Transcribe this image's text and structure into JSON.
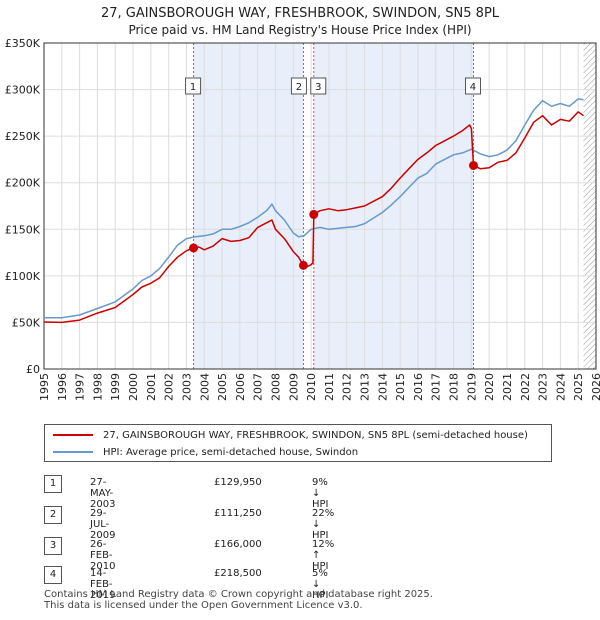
{
  "chart_data": {
    "type": "line",
    "title": "27, GAINSBOROUGH WAY, FRESHBROOK, SWINDON, SN5 8PL",
    "subtitle": "Price paid vs. HM Land Registry's House Price Index (HPI)",
    "xlim": [
      1995,
      2026
    ],
    "ylim": [
      0,
      350000
    ],
    "x_ticks": [
      1995,
      1996,
      1997,
      1998,
      1999,
      2000,
      2001,
      2002,
      2003,
      2004,
      2005,
      2006,
      2007,
      2008,
      2009,
      2010,
      2011,
      2012,
      2013,
      2014,
      2015,
      2016,
      2017,
      2018,
      2019,
      2020,
      2021,
      2022,
      2023,
      2024,
      2025,
      2026
    ],
    "y_ticks": [
      {
        "value": 0,
        "label": "£0"
      },
      {
        "value": 50000,
        "label": "£50K"
      },
      {
        "value": 100000,
        "label": "£100K"
      },
      {
        "value": 150000,
        "label": "£150K"
      },
      {
        "value": 200000,
        "label": "£200K"
      },
      {
        "value": 250000,
        "label": "£250K"
      },
      {
        "value": 300000,
        "label": "£300K"
      },
      {
        "value": 350000,
        "label": "£350K"
      }
    ],
    "shaded_ranges": [
      [
        2003.4,
        2009.57
      ],
      [
        2010.15,
        2019.12
      ]
    ],
    "hatched_from": 2025.3,
    "colors": {
      "property": "#cc0000",
      "hpi": "#6699cc",
      "shade": "#e8eefa",
      "vline": "#dd4444"
    },
    "series": [
      {
        "name": "27, GAINSBOROUGH WAY, FRESHBROOK, SWINDON, SN5 8PL (semi-detached house)",
        "key": "property",
        "x": [
          1995.0,
          1996.0,
          1997.0,
          1998.0,
          1999.0,
          2000.0,
          2000.5,
          2001.0,
          2001.5,
          2002.0,
          2002.5,
          2003.0,
          2003.4,
          2003.7,
          2004.0,
          2004.5,
          2005.0,
          2005.5,
          2006.0,
          2006.5,
          2007.0,
          2007.5,
          2007.8,
          2008.0,
          2008.5,
          2009.0,
          2009.3,
          2009.57,
          2009.6,
          2009.8,
          2010.0,
          2010.1,
          2010.15,
          2010.5,
          2011.0,
          2011.5,
          2012.0,
          2012.5,
          2013.0,
          2013.5,
          2014.0,
          2014.5,
          2015.0,
          2015.5,
          2016.0,
          2016.5,
          2017.0,
          2017.5,
          2018.0,
          2018.5,
          2018.9,
          2019.0,
          2019.12,
          2019.5,
          2020.0,
          2020.5,
          2021.0,
          2021.5,
          2022.0,
          2022.5,
          2023.0,
          2023.5,
          2024.0,
          2024.5,
          2025.0,
          2025.3
        ],
        "y": [
          50500,
          50000,
          52500,
          60000,
          66000,
          80000,
          88000,
          92000,
          98000,
          110000,
          120000,
          127000,
          129950,
          131000,
          128000,
          132000,
          140000,
          137000,
          138000,
          141000,
          152000,
          157000,
          160000,
          150000,
          140000,
          126000,
          120000,
          111250,
          108000,
          110000,
          112000,
          114000,
          166000,
          170000,
          172000,
          170000,
          171000,
          173000,
          175000,
          180000,
          185000,
          194000,
          205000,
          215000,
          225000,
          232000,
          240000,
          245000,
          250000,
          256000,
          262000,
          258000,
          218500,
          215000,
          216000,
          222000,
          224000,
          232000,
          248000,
          265000,
          272000,
          262000,
          268000,
          266000,
          276000,
          272000
        ]
      },
      {
        "name": "HPI: Average price, semi-detached house, Swindon",
        "key": "hpi",
        "x": [
          1995.0,
          1996.0,
          1997.0,
          1998.0,
          1999.0,
          2000.0,
          2000.5,
          2001.0,
          2001.5,
          2002.0,
          2002.5,
          2003.0,
          2003.5,
          2004.0,
          2004.5,
          2005.0,
          2005.5,
          2006.0,
          2006.5,
          2007.0,
          2007.5,
          2007.8,
          2008.0,
          2008.5,
          2009.0,
          2009.3,
          2009.6,
          2010.0,
          2010.5,
          2011.0,
          2011.5,
          2012.0,
          2012.5,
          2013.0,
          2013.5,
          2014.0,
          2014.5,
          2015.0,
          2015.5,
          2016.0,
          2016.5,
          2017.0,
          2017.5,
          2018.0,
          2018.5,
          2019.0,
          2019.5,
          2020.0,
          2020.5,
          2021.0,
          2021.5,
          2022.0,
          2022.5,
          2023.0,
          2023.5,
          2024.0,
          2024.5,
          2025.0,
          2025.3
        ],
        "y": [
          55000,
          55000,
          58000,
          65000,
          72000,
          86000,
          95000,
          100000,
          108000,
          120000,
          133000,
          140000,
          142000,
          143000,
          145000,
          150000,
          150000,
          153000,
          157000,
          163000,
          170000,
          177000,
          170000,
          160000,
          146000,
          142000,
          143000,
          150000,
          152000,
          150000,
          151000,
          152000,
          153000,
          156000,
          162000,
          168000,
          176000,
          185000,
          195000,
          205000,
          210000,
          220000,
          225000,
          230000,
          232000,
          236000,
          231000,
          228000,
          230000,
          235000,
          245000,
          262000,
          278000,
          288000,
          282000,
          285000,
          282000,
          290000,
          289000
        ]
      }
    ],
    "transactions": [
      {
        "label": "1",
        "x": 2003.4,
        "y": 129950,
        "date": "27-MAY-2003",
        "price": "£129,950",
        "hpi": "9% ↓ HPI"
      },
      {
        "label": "2",
        "x": 2009.57,
        "y": 111250,
        "date": "29-JUL-2009",
        "price": "£111,250",
        "hpi": "22% ↓ HPI"
      },
      {
        "label": "3",
        "x": 2010.15,
        "y": 166000,
        "date": "26-FEB-2010",
        "price": "£166,000",
        "hpi": "12% ↑ HPI"
      },
      {
        "label": "4",
        "x": 2019.12,
        "y": 218500,
        "date": "14-FEB-2019",
        "price": "£218,500",
        "hpi": "5% ↓ HPI"
      }
    ]
  },
  "legend": {
    "property_label": "27, GAINSBOROUGH WAY, FRESHBROOK, SWINDON, SN5 8PL (semi-detached house)",
    "hpi_label": "HPI: Average price, semi-detached house, Swindon"
  },
  "footer": {
    "line1": "Contains HM Land Registry data © Crown copyright and database right 2025.",
    "line2": "This data is licensed under the Open Government Licence v3.0."
  }
}
